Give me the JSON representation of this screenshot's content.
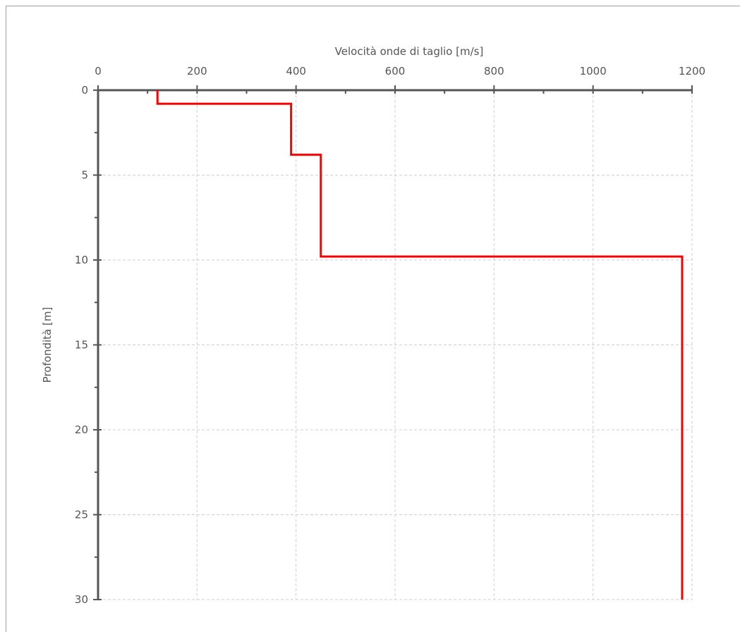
{
  "chart_data": {
    "type": "line",
    "title": "",
    "xlabel": "Velocità onde di taglio [m/s]",
    "ylabel": "Profondità [m]",
    "xlim": [
      0,
      1200
    ],
    "ylim": [
      0,
      30
    ],
    "y_inverted": true,
    "x_axis_position": "top",
    "grid": true,
    "x_ticks": [
      0,
      200,
      400,
      600,
      800,
      1000,
      1200
    ],
    "x_tick_labels": [
      "0",
      "200",
      "400",
      "600",
      "800",
      "1000",
      "1200"
    ],
    "y_ticks": [
      0,
      5,
      10,
      15,
      20,
      25,
      30
    ],
    "y_tick_labels": [
      "0",
      "5",
      "10",
      "15",
      "20",
      "25",
      "30"
    ],
    "series": [
      {
        "color": "#ff0000",
        "x": [
          120,
          120,
          390,
          390,
          450,
          450,
          1180,
          1180
        ],
        "y": [
          0,
          0.8,
          0.8,
          3.8,
          3.8,
          9.8,
          9.8,
          30
        ]
      }
    ]
  }
}
